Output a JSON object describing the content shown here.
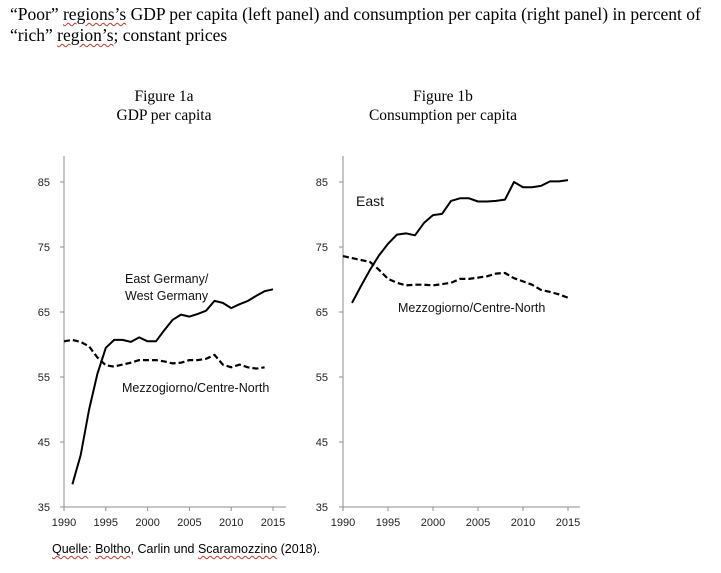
{
  "caption": {
    "q_open": "“Poor” ",
    "regions": "regions’s",
    "mid": " GDP per capita (left panel) and consumption per capita (right panel) in percent of “rich” ",
    "region": "region’s",
    "end": "; constant prices"
  },
  "source": {
    "quelle": "Quelle",
    "sep": ": ",
    "boltho": "Boltho",
    "mid": ", Carlin und ",
    "scaramozzino": "Scaramozzino",
    "end": " (2018)."
  },
  "chart_data": [
    {
      "type": "line",
      "title": "Figure 1a",
      "subtitle": "GDP per capita",
      "xlabel": "",
      "ylabel": "",
      "xlim": [
        1990,
        2016
      ],
      "ylim": [
        35,
        89
      ],
      "x_ticks": [
        1990,
        1995,
        2000,
        2005,
        2010,
        2015
      ],
      "y_ticks": [
        35,
        45,
        55,
        65,
        75,
        85
      ],
      "series": [
        {
          "name": "East Germany/\nWest Germany",
          "label_lines": [
            "East Germany/",
            "West Germany"
          ],
          "style": "solid",
          "color": "#000000",
          "x": [
            1991,
            1992,
            1993,
            1994,
            1995,
            1996,
            1997,
            1998,
            1999,
            2000,
            2001,
            2002,
            2003,
            2004,
            2005,
            2006,
            2007,
            2008,
            2009,
            2010,
            2011,
            2012,
            2013,
            2014,
            2015
          ],
          "y": [
            38.5,
            43,
            50,
            55.5,
            59.5,
            60.7,
            60.7,
            60.4,
            61.1,
            60.5,
            60.5,
            62.2,
            63.8,
            64.6,
            64.3,
            64.7,
            65.2,
            66.7,
            66.4,
            65.6,
            66.2,
            66.7,
            67.5,
            68.2,
            68.5
          ]
        },
        {
          "name": "Mezzogiorno/Centre-North",
          "label_lines": [
            "Mezzogiorno/Centre-North"
          ],
          "style": "dashed",
          "color": "#000000",
          "x": [
            1990,
            1991,
            1992,
            1993,
            1994,
            1995,
            1996,
            1997,
            1998,
            1999,
            2000,
            2001,
            2002,
            2003,
            2004,
            2005,
            2006,
            2007,
            2008,
            2009,
            2010,
            2011,
            2012,
            2013,
            2014
          ],
          "y": [
            60.5,
            60.7,
            60.4,
            59.7,
            58,
            56.8,
            56.6,
            56.9,
            57.2,
            57.6,
            57.6,
            57.6,
            57.4,
            57.1,
            57.2,
            57.6,
            57.6,
            57.8,
            58.4,
            56.9,
            56.5,
            56.9,
            56.5,
            56.3,
            56.5
          ]
        }
      ]
    },
    {
      "type": "line",
      "title": "Figure 1b",
      "subtitle": "Consumption per capita",
      "xlabel": "",
      "ylabel": "",
      "xlim": [
        1990,
        2016
      ],
      "ylim": [
        35,
        89
      ],
      "x_ticks": [
        1990,
        1995,
        2000,
        2005,
        2010,
        2015
      ],
      "y_ticks": [
        35,
        45,
        55,
        65,
        75,
        85
      ],
      "series": [
        {
          "name": "East",
          "label_lines": [
            "East"
          ],
          "style": "solid",
          "color": "#000000",
          "x": [
            1991,
            1992,
            1993,
            1994,
            1995,
            1996,
            1997,
            1998,
            1999,
            2000,
            2001,
            2002,
            2003,
            2004,
            2005,
            2006,
            2007,
            2008,
            2009,
            2010,
            2011,
            2012,
            2013,
            2014,
            2015
          ],
          "y": [
            66.4,
            69,
            71.5,
            73.7,
            75.5,
            76.9,
            77.1,
            76.8,
            78.7,
            79.9,
            80.1,
            82.1,
            82.5,
            82.5,
            82,
            82,
            82.1,
            82.3,
            85,
            84.2,
            84.2,
            84.4,
            85.1,
            85.1,
            85.3
          ]
        },
        {
          "name": "Mezzogiorno/Centre-North",
          "label_lines": [
            "Mezzogiorno/Centre-North"
          ],
          "style": "dashed",
          "color": "#000000",
          "x": [
            1990,
            1991,
            1992,
            1993,
            1994,
            1995,
            1996,
            1997,
            1998,
            1999,
            2000,
            2001,
            2002,
            2003,
            2004,
            2005,
            2006,
            2007,
            2008,
            2009,
            2010,
            2011,
            2012,
            2013,
            2014,
            2015
          ],
          "y": [
            73.6,
            73.3,
            73,
            72.7,
            71.5,
            70.1,
            69.5,
            69.1,
            69.2,
            69.2,
            69.1,
            69.3,
            69.5,
            70.1,
            70.1,
            70.3,
            70.5,
            70.9,
            71,
            70.2,
            69.7,
            69.2,
            68.4,
            68.1,
            67.7,
            67.2
          ]
        }
      ]
    }
  ]
}
